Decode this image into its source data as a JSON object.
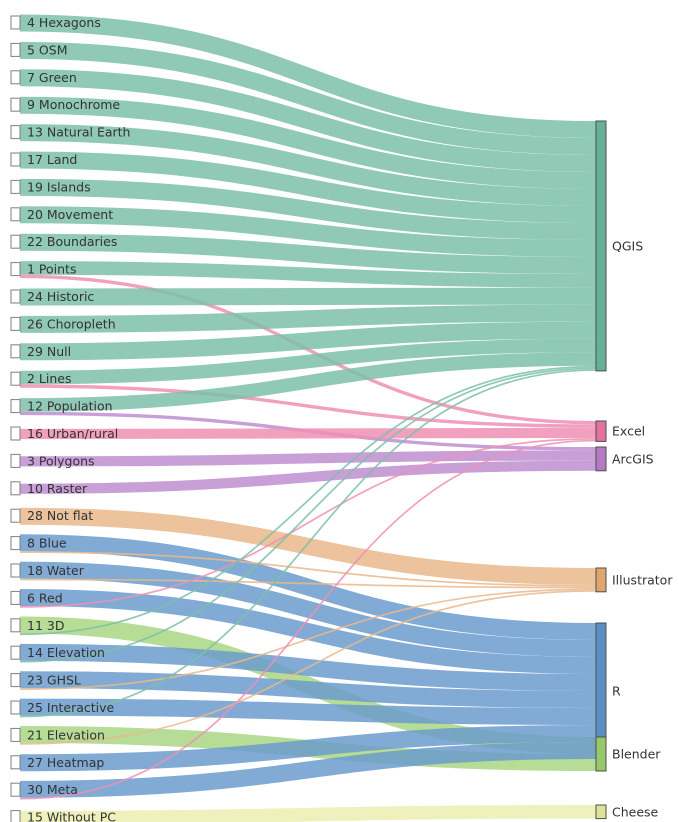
{
  "chart_data": {
    "type": "sankey",
    "sources": [
      "4 Hexagons",
      "5 OSM",
      "7 Green",
      "9 Monochrome",
      "13 Natural Earth",
      "17 Land",
      "19 Islands",
      "20 Movement",
      "22 Boundaries",
      "1 Points",
      "24 Historic",
      "26 Choropleth",
      "29 Null",
      "2 Lines",
      "12 Population",
      "16 Urban/rural",
      "3 Polygons",
      "10 Raster",
      "28 Not flat",
      "8 Blue",
      "18 Water",
      "6 Red",
      "11 3D",
      "14 Elevation",
      "23 GHSL",
      "25 Interactive",
      "21 Elevation",
      "27 Heatmap",
      "30 Meta",
      "15 Without PC"
    ],
    "targets": [
      {
        "name": "QGIS",
        "color": "#7dbfa8",
        "bar": "#66b195"
      },
      {
        "name": "Excel",
        "color": "#f08fb4",
        "bar": "#e4729f"
      },
      {
        "name": "ArcGIS",
        "color": "#c08ed0",
        "bar": "#b47ac5"
      },
      {
        "name": "Illustrator",
        "color": "#eab98c",
        "bar": "#e0a56f"
      },
      {
        "name": "R",
        "color": "#6b9ccd",
        "bar": "#5a8ec4"
      },
      {
        "name": "Blender",
        "color": "#a9d683",
        "bar": "#95c96c"
      },
      {
        "name": "Cheese",
        "color": "#ecefb0",
        "bar": "#dfe39a"
      }
    ],
    "links": [
      {
        "source": "4 Hexagons",
        "target": "QGIS",
        "value": 5
      },
      {
        "source": "5 OSM",
        "target": "QGIS",
        "value": 5
      },
      {
        "source": "7 Green",
        "target": "QGIS",
        "value": 5
      },
      {
        "source": "9 Monochrome",
        "target": "QGIS",
        "value": 5
      },
      {
        "source": "13 Natural Earth",
        "target": "QGIS",
        "value": 5
      },
      {
        "source": "17 Land",
        "target": "QGIS",
        "value": 5
      },
      {
        "source": "19 Islands",
        "target": "QGIS",
        "value": 5
      },
      {
        "source": "20 Movement",
        "target": "QGIS",
        "value": 5
      },
      {
        "source": "22 Boundaries",
        "target": "QGIS",
        "value": 5
      },
      {
        "source": "1 Points",
        "target": "QGIS",
        "value": 4
      },
      {
        "source": "1 Points",
        "target": "Excel",
        "value": 1
      },
      {
        "source": "24 Historic",
        "target": "QGIS",
        "value": 5
      },
      {
        "source": "26 Choropleth",
        "target": "QGIS",
        "value": 5
      },
      {
        "source": "29 Null",
        "target": "QGIS",
        "value": 5
      },
      {
        "source": "2 Lines",
        "target": "QGIS",
        "value": 4
      },
      {
        "source": "2 Lines",
        "target": "Excel",
        "value": 1
      },
      {
        "source": "12 Population",
        "target": "QGIS",
        "value": 4
      },
      {
        "source": "12 Population",
        "target": "ArcGIS",
        "value": 1
      },
      {
        "source": "16 Urban/rural",
        "target": "Excel",
        "value": 3
      },
      {
        "source": "3 Polygons",
        "target": "ArcGIS",
        "value": 3
      },
      {
        "source": "10 Raster",
        "target": "ArcGIS",
        "value": 3
      },
      {
        "source": "28 Not flat",
        "target": "Illustrator",
        "value": 5
      },
      {
        "source": "8 Blue",
        "target": "R",
        "value": 5
      },
      {
        "source": "8 Blue",
        "target": "Illustrator",
        "value": 0.5
      },
      {
        "source": "18 Water",
        "target": "R",
        "value": 5
      },
      {
        "source": "18 Water",
        "target": "Illustrator",
        "value": 0.5
      },
      {
        "source": "6 Red",
        "target": "R",
        "value": 5
      },
      {
        "source": "6 Red",
        "target": "Excel",
        "value": 0.5
      },
      {
        "source": "11 3D",
        "target": "Blender",
        "value": 5
      },
      {
        "source": "11 3D",
        "target": "QGIS",
        "value": 0.5
      },
      {
        "source": "14 Elevation",
        "target": "R",
        "value": 5
      },
      {
        "source": "14 Elevation",
        "target": "QGIS",
        "value": 0.5
      },
      {
        "source": "23 GHSL",
        "target": "R",
        "value": 5
      },
      {
        "source": "23 GHSL",
        "target": "Illustrator",
        "value": 0.5
      },
      {
        "source": "25 Interactive",
        "target": "R",
        "value": 5
      },
      {
        "source": "25 Interactive",
        "target": "QGIS",
        "value": 0.5
      },
      {
        "source": "21 Elevation",
        "target": "Blender",
        "value": 5
      },
      {
        "source": "21 Elevation",
        "target": "Illustrator",
        "value": 0.5
      },
      {
        "source": "27 Heatmap",
        "target": "R",
        "value": 5
      },
      {
        "source": "30 Meta",
        "target": "R",
        "value": 5
      },
      {
        "source": "30 Meta",
        "target": "Excel",
        "value": 0.5
      },
      {
        "source": "15 Without PC",
        "target": "Cheese",
        "value": 4
      }
    ]
  }
}
